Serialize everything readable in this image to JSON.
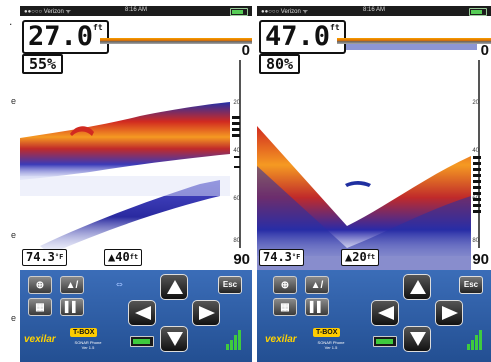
{
  "stray_letters": [
    "e",
    "e",
    "e"
  ],
  "stray_top": ".",
  "left_phone": {
    "status": {
      "carrier": "●●○○○ Verizon ᯤ",
      "time": "8:16 AM"
    },
    "depth": "27.0",
    "depth_unit": "ft",
    "percent": "55%",
    "scale_top": "0",
    "scale_bottom": "90",
    "scale_ticks": [
      "20",
      "40",
      "60",
      "80"
    ],
    "temperature": "74.3",
    "temp_unit": "°F",
    "zoom_depth": "40",
    "zoom_unit": "ft",
    "buttons": {
      "zoom": "⊕",
      "chart": "▲/",
      "pause": "▌▌",
      "esc": "Esc",
      "grid": "▦"
    },
    "logo": "vexilar",
    "tbox": "T-BOX",
    "sonar_label": "SONAR Phone",
    "version": "Ver 1.5"
  },
  "right_phone": {
    "status": {
      "carrier": "●●○○○ Verizon ᯤ",
      "time": "8:16 AM"
    },
    "depth": "47.0",
    "depth_unit": "ft",
    "percent": "80%",
    "scale_top": "0",
    "scale_bottom": "90",
    "scale_ticks": [
      "20",
      "40",
      "60",
      "80"
    ],
    "temperature": "74.3",
    "temp_unit": "°F",
    "zoom_depth": "20",
    "zoom_unit": "ft",
    "buttons": {
      "zoom": "⊕",
      "chart": "▲/",
      "pause": "▌▌",
      "esc": "Esc",
      "grid": "▦"
    },
    "logo": "vexilar",
    "tbox": "T-BOX",
    "sonar_label": "SONAR Phone",
    "version": "Ver 1.5"
  },
  "colors": {
    "sonar_red": "#c8281e",
    "sonar_orange": "#f28a1c",
    "sonar_blue": "#1f2fa0",
    "panel_blue": "#2f5ea8"
  }
}
